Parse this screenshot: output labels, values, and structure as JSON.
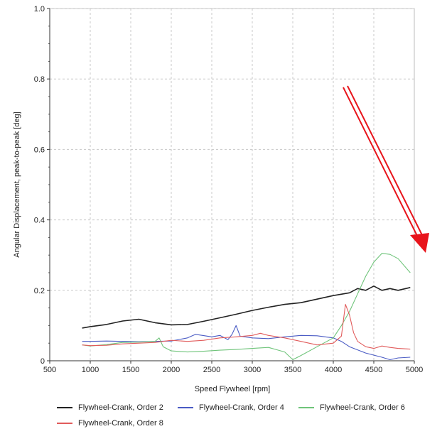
{
  "chart_data": {
    "type": "line",
    "title": "",
    "xlabel": "Speed Flywheel [rpm]",
    "ylabel": "Angular Displacement, peak-to-peak [deg]",
    "xlim": [
      500,
      5000
    ],
    "ylim": [
      0,
      1.0
    ],
    "xticks": [
      "500",
      "1000",
      "1500",
      "2000",
      "2500",
      "3000",
      "3500",
      "4000",
      "4500",
      "5000"
    ],
    "yticks": [
      "0",
      "0.2",
      "0.4",
      "0.6",
      "0.8",
      "1.0"
    ],
    "grid": true,
    "legend_position": "bottom",
    "series": [
      {
        "name": "Flywheel-Crank, Order 2",
        "color": "#222222",
        "x": [
          900,
          1000,
          1200,
          1400,
          1600,
          1800,
          2000,
          2200,
          2400,
          2600,
          2800,
          3000,
          3200,
          3400,
          3600,
          3800,
          4000,
          4200,
          4300,
          4400,
          4500,
          4600,
          4700,
          4800,
          4950
        ],
        "y": [
          0.093,
          0.097,
          0.103,
          0.113,
          0.118,
          0.108,
          0.102,
          0.103,
          0.112,
          0.122,
          0.132,
          0.143,
          0.152,
          0.16,
          0.165,
          0.175,
          0.185,
          0.193,
          0.205,
          0.2,
          0.212,
          0.2,
          0.205,
          0.2,
          0.208
        ]
      },
      {
        "name": "Flywheel-Crank, Order 4",
        "color": "#4a5bc4",
        "x": [
          900,
          1000,
          1200,
          1400,
          1600,
          1800,
          2000,
          2200,
          2300,
          2500,
          2600,
          2700,
          2750,
          2800,
          2850,
          3000,
          3200,
          3400,
          3600,
          3800,
          4000,
          4100,
          4200,
          4400,
          4600,
          4700,
          4800,
          4950
        ],
        "y": [
          0.055,
          0.055,
          0.056,
          0.055,
          0.054,
          0.055,
          0.056,
          0.065,
          0.075,
          0.068,
          0.072,
          0.06,
          0.075,
          0.1,
          0.07,
          0.065,
          0.063,
          0.068,
          0.072,
          0.071,
          0.065,
          0.055,
          0.04,
          0.022,
          0.01,
          0.003,
          0.008,
          0.01
        ]
      },
      {
        "name": "Flywheel-Crank, Order 6",
        "color": "#6fc47a",
        "x": [
          900,
          1000,
          1200,
          1400,
          1600,
          1800,
          1850,
          1900,
          2000,
          2200,
          2400,
          2600,
          2800,
          3000,
          3200,
          3400,
          3500,
          3600,
          3800,
          4000,
          4100,
          4200,
          4300,
          4400,
          4500,
          4600,
          4700,
          4800,
          4950
        ],
        "y": [
          0.045,
          0.042,
          0.046,
          0.052,
          0.053,
          0.055,
          0.065,
          0.04,
          0.028,
          0.025,
          0.027,
          0.03,
          0.032,
          0.035,
          0.038,
          0.025,
          0.003,
          0.015,
          0.04,
          0.065,
          0.1,
          0.14,
          0.19,
          0.24,
          0.28,
          0.305,
          0.302,
          0.29,
          0.25
        ]
      },
      {
        "name": "Flywheel-Crank, Order 8",
        "color": "#e15b5b",
        "x": [
          900,
          1000,
          1200,
          1400,
          1600,
          1800,
          2000,
          2200,
          2400,
          2600,
          2800,
          3000,
          3100,
          3200,
          3400,
          3600,
          3800,
          4000,
          4100,
          4150,
          4200,
          4250,
          4300,
          4400,
          4500,
          4600,
          4700,
          4800,
          4950
        ],
        "y": [
          0.045,
          0.043,
          0.044,
          0.048,
          0.05,
          0.052,
          0.058,
          0.055,
          0.058,
          0.065,
          0.068,
          0.072,
          0.078,
          0.072,
          0.065,
          0.055,
          0.045,
          0.05,
          0.07,
          0.16,
          0.13,
          0.08,
          0.055,
          0.04,
          0.035,
          0.042,
          0.038,
          0.035,
          0.033
        ]
      }
    ]
  },
  "annotation": {
    "arrow_color": "#e8141b"
  }
}
